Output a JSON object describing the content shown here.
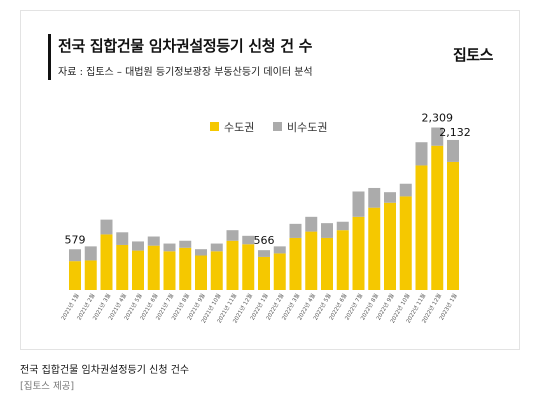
{
  "chart_title": "전국 집합건물 임차권설정등기 신청 건 수",
  "source_text": "자료 : 집토스 – 대법원 등기정보광장 부동산등기 데이터 분석",
  "logo_text": "집토스",
  "caption": "전국 집합건물 임차권설정등기 신청 건수",
  "credit": "[집토스 제공]",
  "colors": {
    "metro": "#f5c800",
    "non_metro": "#ababab",
    "text": "#111111"
  },
  "chart_data": {
    "type": "bar",
    "stacked": true,
    "legend_position": "top-center",
    "categories": [
      "2021년 1월",
      "2021년 2월",
      "2021년 3월",
      "2021년 4월",
      "2021년 5월",
      "2021년 6월",
      "2021년 7월",
      "2021년 8월",
      "2021년 9월",
      "2021년 10월",
      "2021년 11월",
      "2021년 12월",
      "2022년 1월",
      "2022년 2월",
      "2022년 3월",
      "2022년 4월",
      "2022년 5월",
      "2022년 6월",
      "2022년 7월",
      "2022년 8월",
      "2022년 9월",
      "2022년 10월",
      "2022년 11월",
      "2022년 12월",
      "2023년 1월"
    ],
    "series": [
      {
        "name": "수도권",
        "values": [
          410,
          420,
          790,
          640,
          560,
          630,
          550,
          600,
          490,
          550,
          700,
          650,
          470,
          520,
          740,
          830,
          740,
          850,
          1040,
          1170,
          1240,
          1330,
          1770,
          2050,
          1820
        ]
      },
      {
        "name": "비수도권",
        "values": [
          169,
          200,
          210,
          180,
          130,
          130,
          110,
          100,
          90,
          110,
          150,
          120,
          96,
          100,
          200,
          210,
          210,
          120,
          360,
          280,
          150,
          180,
          330,
          259,
          312
        ]
      }
    ],
    "annotations": [
      {
        "category": "2021년 1월",
        "label": "579"
      },
      {
        "category": "2022년 1월",
        "label": "566"
      },
      {
        "category": "2022년 12월",
        "label": "2,309"
      },
      {
        "category": "2023년 1월",
        "label": "2,132"
      }
    ],
    "ylim": [
      0,
      2700
    ],
    "grid": false
  }
}
